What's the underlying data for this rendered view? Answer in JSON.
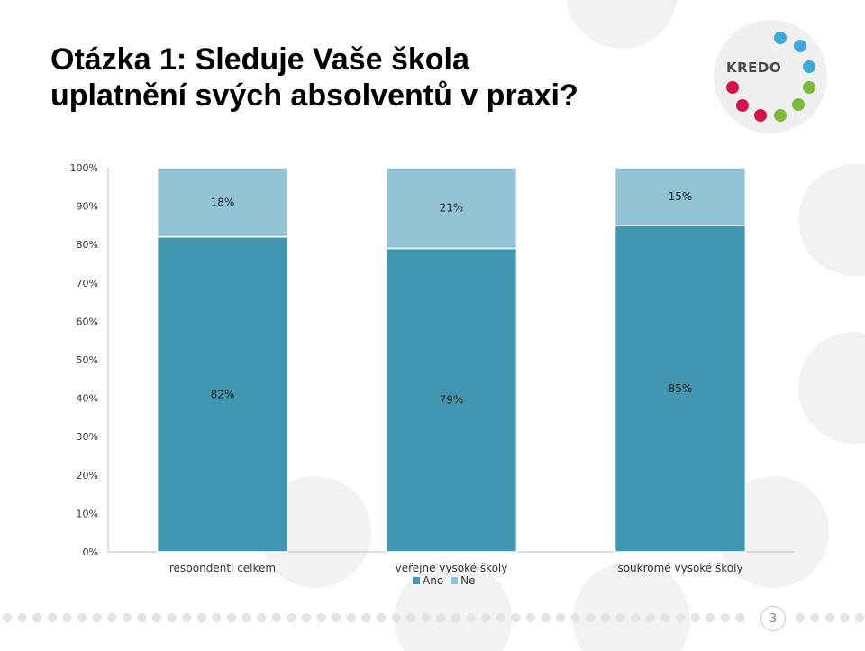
{
  "slide": {
    "title_line1": "Otázka 1: Sleduje Vaše škola",
    "title_line2": "uplatnění svých absolventů v praxi?",
    "logo_text": "KREDO",
    "page_number": "3"
  },
  "colors": {
    "ano": "#4297b0",
    "ne": "#93c4d6",
    "axis": "#bfbfbf",
    "logo_blue": "#3da9d8",
    "logo_green": "#7cb93c",
    "logo_red": "#d4144a"
  },
  "chart_data": {
    "type": "bar",
    "stacked": true,
    "categories": [
      "respondenti celkem",
      "veřejné vysoké školy",
      "soukromé vysoké školy"
    ],
    "series": [
      {
        "name": "Ano",
        "values": [
          82,
          79,
          85
        ]
      },
      {
        "name": "Ne",
        "values": [
          18,
          21,
          15
        ]
      }
    ],
    "value_labels": [
      [
        "82%",
        "79%",
        "85%"
      ],
      [
        "18%",
        "21%",
        "15%"
      ]
    ],
    "y_ticks": [
      "0%",
      "10%",
      "20%",
      "30%",
      "40%",
      "50%",
      "60%",
      "70%",
      "80%",
      "90%",
      "100%"
    ],
    "ylim": [
      0,
      100
    ],
    "grid": false,
    "legend": "bottom"
  }
}
